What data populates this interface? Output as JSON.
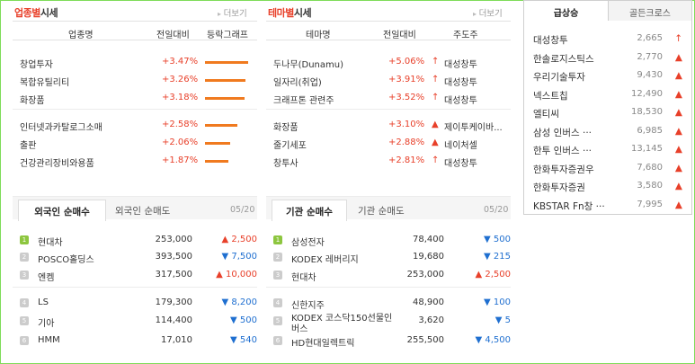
{
  "industry": {
    "title_highlight": "업종별",
    "title_rest": "시세",
    "more": "더보기",
    "headers": [
      "업종명",
      "전일대비",
      "등락그래프"
    ],
    "rows": [
      {
        "name": "창업투자",
        "change": "+3.47%",
        "bar": 3.47
      },
      {
        "name": "복합유틸리티",
        "change": "+3.26%",
        "bar": 3.26
      },
      {
        "name": "화장품",
        "change": "+3.18%",
        "bar": 3.18
      },
      {
        "name": "인터넷과카탈로그소매",
        "change": "+2.58%",
        "bar": 2.58
      },
      {
        "name": "출판",
        "change": "+2.06%",
        "bar": 2.06
      },
      {
        "name": "건강관리장비와용품",
        "change": "+1.87%",
        "bar": 1.87
      }
    ]
  },
  "theme": {
    "title_highlight": "테마별",
    "title_rest": "시세",
    "more": "더보기",
    "headers": [
      "테마명",
      "전일대비",
      "주도주"
    ],
    "rows": [
      {
        "name": "두나무(Dunamu)",
        "change": "+5.06%",
        "arrow": "↑",
        "leader": "대성창투"
      },
      {
        "name": "일자리(취업)",
        "change": "+3.91%",
        "arrow": "↑",
        "leader": "대성창투"
      },
      {
        "name": "크래프톤 관련주",
        "change": "+3.52%",
        "arrow": "↑",
        "leader": "대성창투"
      },
      {
        "name": "화장품",
        "change": "+3.10%",
        "arrow": "▲",
        "leader": "제이투케이바..."
      },
      {
        "name": "줄기세포",
        "change": "+2.88%",
        "arrow": "▲",
        "leader": "네이처셀"
      },
      {
        "name": "창투사",
        "change": "+2.81%",
        "arrow": "↑",
        "leader": "대성창투"
      }
    ]
  },
  "foreign": {
    "tab_active": "외국인 순매수",
    "tab_inactive": "외국인 순매도",
    "date": "05/20",
    "rows": [
      {
        "rank": "1",
        "name": "현대차",
        "price": "253,000",
        "dir": "up",
        "arrow": "▲",
        "diff": "2,500"
      },
      {
        "rank": "2",
        "name": "POSCO홀딩스",
        "price": "393,500",
        "dir": "dn",
        "arrow": "▼",
        "diff": "7,500"
      },
      {
        "rank": "3",
        "name": "엔켐",
        "price": "317,500",
        "dir": "up",
        "arrow": "▲",
        "diff": "10,000"
      },
      {
        "rank": "4",
        "name": "LS",
        "price": "179,300",
        "dir": "dn",
        "arrow": "▼",
        "diff": "8,200"
      },
      {
        "rank": "5",
        "name": "기아",
        "price": "114,400",
        "dir": "dn",
        "arrow": "▼",
        "diff": "500"
      },
      {
        "rank": "6",
        "name": "HMM",
        "price": "17,010",
        "dir": "dn",
        "arrow": "▼",
        "diff": "540"
      }
    ]
  },
  "institution": {
    "tab_active": "기관 순매수",
    "tab_inactive": "기관 순매도",
    "date": "05/20",
    "rows": [
      {
        "rank": "1",
        "name": "삼성전자",
        "name2": "",
        "price": "78,400",
        "dir": "dn",
        "arrow": "▼",
        "diff": "500"
      },
      {
        "rank": "2",
        "name": "KODEX 레버리지",
        "name2": "",
        "price": "19,680",
        "dir": "dn",
        "arrow": "▼",
        "diff": "215"
      },
      {
        "rank": "3",
        "name": "현대차",
        "name2": "",
        "price": "253,000",
        "dir": "up",
        "arrow": "▲",
        "diff": "2,500"
      },
      {
        "rank": "4",
        "name": "신한지주",
        "name2": "",
        "price": "48,900",
        "dir": "dn",
        "arrow": "▼",
        "diff": "100"
      },
      {
        "rank": "5",
        "name": "KODEX 코스닥150선물인",
        "name2": "버스",
        "price": "3,620",
        "dir": "dn",
        "arrow": "▼",
        "diff": "5"
      },
      {
        "rank": "6",
        "name": "HD현대일렉트릭",
        "name2": "",
        "price": "255,500",
        "dir": "dn",
        "arrow": "▼",
        "diff": "4,500"
      }
    ]
  },
  "ranking": {
    "tab_active": "급상승",
    "tab_inactive": "골든크로스",
    "rows": [
      {
        "name": "대성창투",
        "price": "2,665",
        "arrow": "↑"
      },
      {
        "name": "한솔로지스틱스",
        "price": "2,770",
        "arrow": "▲"
      },
      {
        "name": "우리기술투자",
        "price": "9,430",
        "arrow": "▲"
      },
      {
        "name": "넥스트칩",
        "price": "12,490",
        "arrow": "▲"
      },
      {
        "name": "엘티씨",
        "price": "18,530",
        "arrow": "▲"
      },
      {
        "name": "삼성 인버스 ···",
        "price": "6,985",
        "arrow": "▲"
      },
      {
        "name": "한투 인버스 ···",
        "price": "13,145",
        "arrow": "▲"
      },
      {
        "name": "한화투자증권우",
        "price": "7,680",
        "arrow": "▲"
      },
      {
        "name": "한화투자증권",
        "price": "3,580",
        "arrow": "▲"
      },
      {
        "name": "KBSTAR Fn창 ···",
        "price": "7,995",
        "arrow": "▲"
      }
    ]
  },
  "colors": {
    "accent": "#e8402a",
    "down": "#1f6fd0",
    "bar": "#f07a1f",
    "rank_first": "#8dc63f"
  }
}
